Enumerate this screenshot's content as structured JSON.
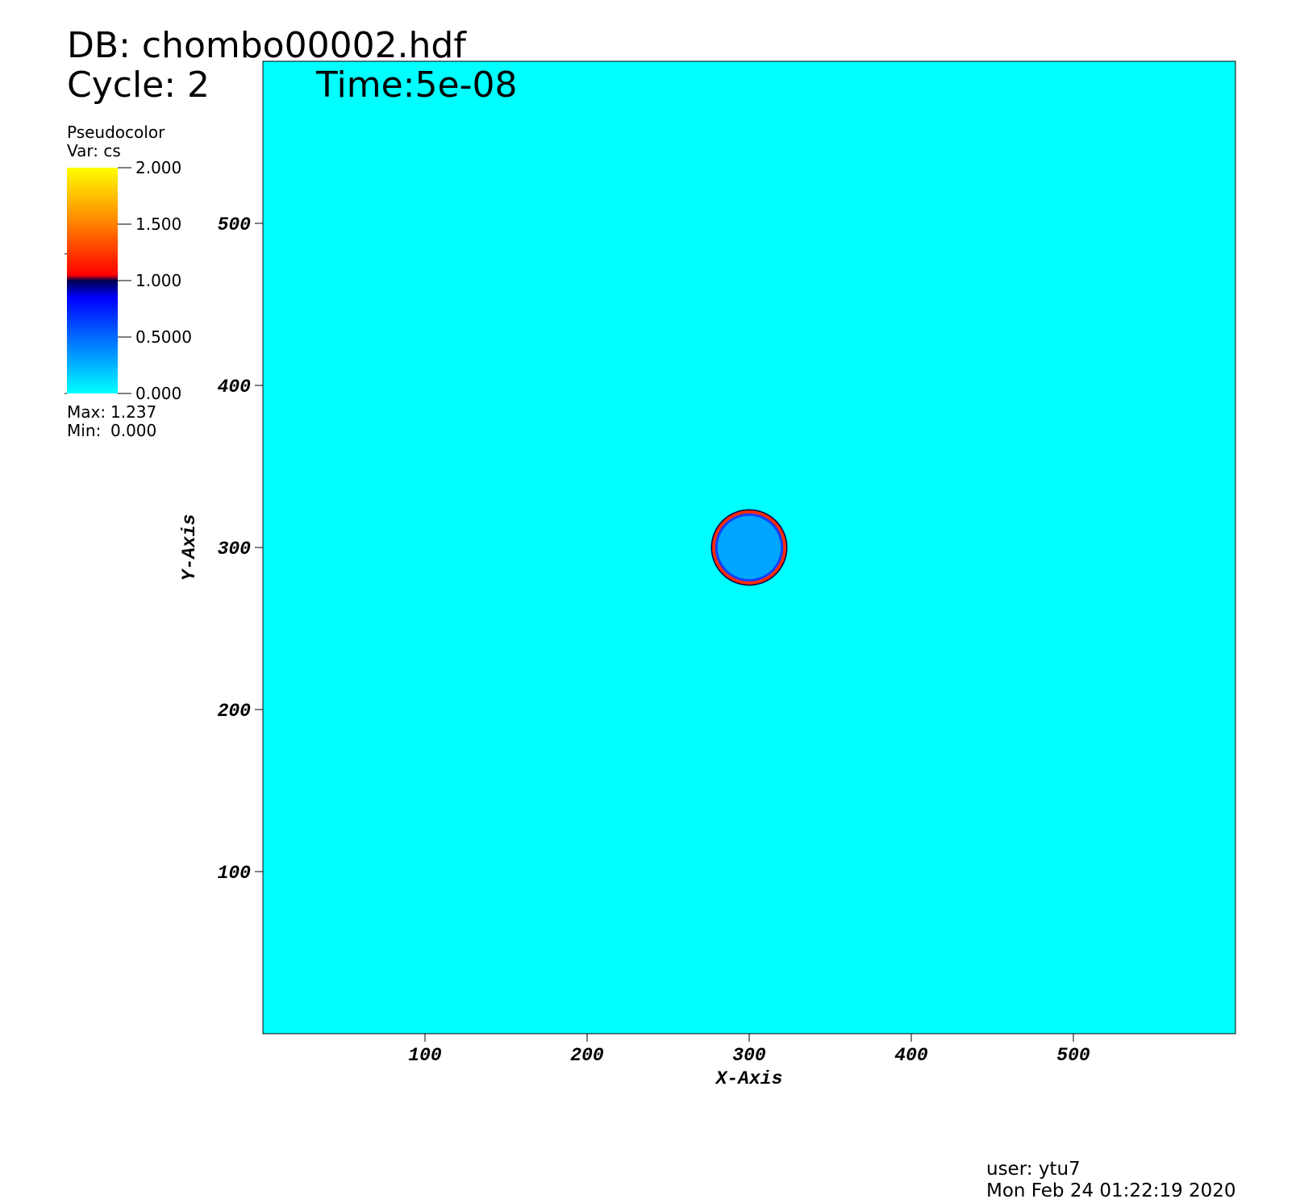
{
  "chart_data": {
    "type": "pseudocolor",
    "database": "DB: chombo00002.hdf",
    "cycle": "Cycle: 2",
    "time": "Time:5e-08",
    "legend_title": "Pseudocolor",
    "legend_var": "Var: cs",
    "x_label": "X-Axis",
    "y_label": "Y-Axis",
    "xlim": [
      0,
      600
    ],
    "ylim": [
      0,
      600
    ],
    "xticks": [
      100,
      200,
      300,
      400,
      500
    ],
    "yticks": [
      100,
      200,
      300,
      400,
      500
    ],
    "background_value": 0,
    "ring": {
      "x": 300,
      "y": 300,
      "radius": 22,
      "value": 1.2,
      "inner_value": 0.3
    },
    "colorbar_lim": [
      0,
      2
    ],
    "colorbar_ticks": [
      {
        "value": 0,
        "label": "0.000"
      },
      {
        "value": 0.5,
        "label": "0.5000"
      },
      {
        "value": 1,
        "label": "1.000"
      },
      {
        "value": 1.5,
        "label": "1.500"
      },
      {
        "value": 2,
        "label": "2.000"
      }
    ],
    "colormap": [
      {
        "value": 0,
        "color": "#00ffff"
      },
      {
        "value": 0.85,
        "color": "#0000ff"
      },
      {
        "value": 1.0,
        "color": "#000050"
      },
      {
        "value": 1.05,
        "color": "#ff0000"
      },
      {
        "value": 1.5,
        "color": "#ff8000"
      },
      {
        "value": 2,
        "color": "#ffff00"
      }
    ],
    "stats": {
      "names": [
        "Max:",
        "Min:"
      ],
      "values": [
        1.237,
        0
      ],
      "value_labels": [
        "1.237",
        "0.000"
      ]
    },
    "user": "user: ytu7",
    "date": "Mon Feb 24 01:22:19 2020"
  }
}
